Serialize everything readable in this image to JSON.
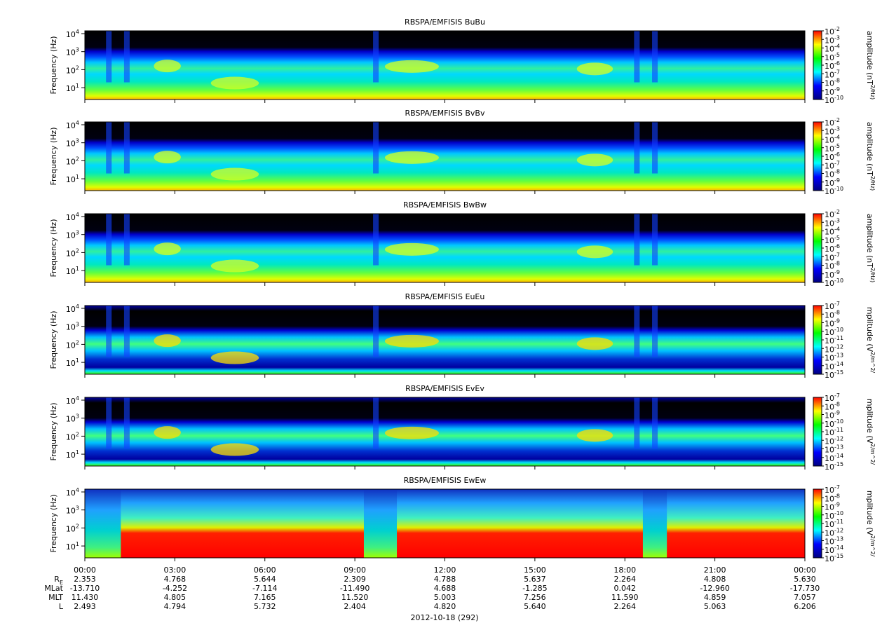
{
  "chart_data": [
    {
      "type": "spectrogram",
      "title": "RBSPA/EMFISIS  BuBu",
      "y_label": "Frequency (Hz)",
      "ylog": true,
      "ylim": [
        2.2,
        14300
      ],
      "yticks": [
        {
          "value": 10,
          "label": "10^1"
        },
        {
          "value": 100,
          "label": "10^2"
        },
        {
          "value": 1000,
          "label": "10^3"
        },
        {
          "value": 10000,
          "label": "10^4"
        }
      ],
      "xlim": [
        0,
        24
      ],
      "xticks": [
        0,
        3,
        6,
        9,
        12,
        15,
        18,
        21,
        24
      ],
      "colorbar_label": "amplitude (nT^2/Hz)",
      "clim": [
        1e-10,
        0.01
      ],
      "cticks": [
        {
          "value": 0.01,
          "label": "10^-2"
        },
        {
          "value": 0.001,
          "label": "10^-3"
        },
        {
          "value": 0.0001,
          "label": "10^-4"
        },
        {
          "value": 1e-05,
          "label": "10^-5"
        },
        {
          "value": 1e-06,
          "label": "10^-6"
        },
        {
          "value": 1e-07,
          "label": "10^-7"
        },
        {
          "value": 1e-08,
          "label": "10^-8"
        },
        {
          "value": 1e-09,
          "label": "10^-9"
        },
        {
          "value": 1e-10,
          "label": "10^-10"
        }
      ],
      "colormap": [
        "#00007f",
        "#0000ff",
        "#00ffff",
        "#00ff00",
        "#ffff00",
        "#ff0000"
      ]
    },
    {
      "type": "spectrogram",
      "title": "RBSPA/EMFISIS  BvBv",
      "y_label": "Frequency (Hz)",
      "ylog": true,
      "ylim": [
        2.2,
        14300
      ],
      "yticks": [
        {
          "value": 10,
          "label": "10^1"
        },
        {
          "value": 100,
          "label": "10^2"
        },
        {
          "value": 1000,
          "label": "10^3"
        },
        {
          "value": 10000,
          "label": "10^4"
        }
      ],
      "xlim": [
        0,
        24
      ],
      "xticks": [
        0,
        3,
        6,
        9,
        12,
        15,
        18,
        21,
        24
      ],
      "colorbar_label": "amplitude (nT^2/Hz)",
      "clim": [
        1e-10,
        0.01
      ],
      "cticks": [
        {
          "value": 0.01,
          "label": "10^-2"
        },
        {
          "value": 0.001,
          "label": "10^-3"
        },
        {
          "value": 0.0001,
          "label": "10^-4"
        },
        {
          "value": 1e-05,
          "label": "10^-5"
        },
        {
          "value": 1e-06,
          "label": "10^-6"
        },
        {
          "value": 1e-07,
          "label": "10^-7"
        },
        {
          "value": 1e-08,
          "label": "10^-8"
        },
        {
          "value": 1e-09,
          "label": "10^-9"
        },
        {
          "value": 1e-10,
          "label": "10^-10"
        }
      ],
      "colormap": [
        "#00007f",
        "#0000ff",
        "#00ffff",
        "#00ff00",
        "#ffff00",
        "#ff0000"
      ]
    },
    {
      "type": "spectrogram",
      "title": "RBSPA/EMFISIS  BwBw",
      "y_label": "Frequency (Hz)",
      "ylog": true,
      "ylim": [
        2.2,
        14300
      ],
      "yticks": [
        {
          "value": 10,
          "label": "10^1"
        },
        {
          "value": 100,
          "label": "10^2"
        },
        {
          "value": 1000,
          "label": "10^3"
        },
        {
          "value": 10000,
          "label": "10^4"
        }
      ],
      "xlim": [
        0,
        24
      ],
      "xticks": [
        0,
        3,
        6,
        9,
        12,
        15,
        18,
        21,
        24
      ],
      "colorbar_label": "amplitude (nT^2/Hz)",
      "clim": [
        1e-10,
        0.01
      ],
      "cticks": [
        {
          "value": 0.01,
          "label": "10^-2"
        },
        {
          "value": 0.001,
          "label": "10^-3"
        },
        {
          "value": 0.0001,
          "label": "10^-4"
        },
        {
          "value": 1e-05,
          "label": "10^-5"
        },
        {
          "value": 1e-06,
          "label": "10^-6"
        },
        {
          "value": 1e-07,
          "label": "10^-7"
        },
        {
          "value": 1e-08,
          "label": "10^-8"
        },
        {
          "value": 1e-09,
          "label": "10^-9"
        },
        {
          "value": 1e-10,
          "label": "10^-10"
        }
      ],
      "colormap": [
        "#00007f",
        "#0000ff",
        "#00ffff",
        "#00ff00",
        "#ffff00",
        "#ff0000"
      ]
    },
    {
      "type": "spectrogram",
      "title": "RBSPA/EMFISIS  EuEu",
      "y_label": "Frequency (Hz)",
      "ylog": true,
      "ylim": [
        2.2,
        14300
      ],
      "yticks": [
        {
          "value": 10,
          "label": "10^1"
        },
        {
          "value": 100,
          "label": "10^2"
        },
        {
          "value": 1000,
          "label": "10^3"
        },
        {
          "value": 10000,
          "label": "10^4"
        }
      ],
      "xlim": [
        0,
        24
      ],
      "xticks": [
        0,
        3,
        6,
        9,
        12,
        15,
        18,
        21,
        24
      ],
      "colorbar_label": "mplitude (V^2/m^2/",
      "clim": [
        1e-15,
        1e-07
      ],
      "cticks": [
        {
          "value": 1e-07,
          "label": "10^-7"
        },
        {
          "value": 1e-08,
          "label": "10^-8"
        },
        {
          "value": 1e-09,
          "label": "10^-9"
        },
        {
          "value": 1e-10,
          "label": "10^-10"
        },
        {
          "value": 1e-11,
          "label": "10^-11"
        },
        {
          "value": 1e-12,
          "label": "10^-12"
        },
        {
          "value": 1e-13,
          "label": "10^-13"
        },
        {
          "value": 1e-14,
          "label": "10^-14"
        },
        {
          "value": 1e-15,
          "label": "10^-15"
        }
      ],
      "colormap": [
        "#00007f",
        "#0000ff",
        "#00ffff",
        "#00ff00",
        "#ffff00",
        "#ff0000"
      ]
    },
    {
      "type": "spectrogram",
      "title": "RBSPA/EMFISIS  EvEv",
      "y_label": "Frequency (Hz)",
      "ylog": true,
      "ylim": [
        2.2,
        14300
      ],
      "yticks": [
        {
          "value": 10,
          "label": "10^1"
        },
        {
          "value": 100,
          "label": "10^2"
        },
        {
          "value": 1000,
          "label": "10^3"
        },
        {
          "value": 10000,
          "label": "10^4"
        }
      ],
      "xlim": [
        0,
        24
      ],
      "xticks": [
        0,
        3,
        6,
        9,
        12,
        15,
        18,
        21,
        24
      ],
      "colorbar_label": "mplitude (V^2/m^2/",
      "clim": [
        1e-15,
        1e-07
      ],
      "cticks": [
        {
          "value": 1e-07,
          "label": "10^-7"
        },
        {
          "value": 1e-08,
          "label": "10^-8"
        },
        {
          "value": 1e-09,
          "label": "10^-9"
        },
        {
          "value": 1e-10,
          "label": "10^-10"
        },
        {
          "value": 1e-11,
          "label": "10^-11"
        },
        {
          "value": 1e-12,
          "label": "10^-12"
        },
        {
          "value": 1e-13,
          "label": "10^-13"
        },
        {
          "value": 1e-14,
          "label": "10^-14"
        },
        {
          "value": 1e-15,
          "label": "10^-15"
        }
      ],
      "colormap": [
        "#00007f",
        "#0000ff",
        "#00ffff",
        "#00ff00",
        "#ffff00",
        "#ff0000"
      ]
    },
    {
      "type": "spectrogram",
      "title": "RBSPA/EMFISIS  EwEw",
      "y_label": "Frequency (Hz)",
      "ylog": true,
      "ylim": [
        2.2,
        14300
      ],
      "yticks": [
        {
          "value": 10,
          "label": "10^1"
        },
        {
          "value": 100,
          "label": "10^2"
        },
        {
          "value": 1000,
          "label": "10^3"
        },
        {
          "value": 10000,
          "label": "10^4"
        }
      ],
      "xlim": [
        0,
        24
      ],
      "xticks": [
        {
          "value": 0,
          "label": "00:00"
        },
        {
          "value": 3,
          "label": "03:00"
        },
        {
          "value": 6,
          "label": "06:00"
        },
        {
          "value": 9,
          "label": "09:00"
        },
        {
          "value": 12,
          "label": "12:00"
        },
        {
          "value": 15,
          "label": "15:00"
        },
        {
          "value": 18,
          "label": "18:00"
        },
        {
          "value": 21,
          "label": "21:00"
        },
        {
          "value": 24,
          "label": "00:00"
        }
      ],
      "colorbar_label": "mplitude (V^2/m^2/",
      "clim": [
        1e-15,
        1e-07
      ],
      "cticks": [
        {
          "value": 1e-07,
          "label": "10^-7"
        },
        {
          "value": 1e-08,
          "label": "10^-8"
        },
        {
          "value": 1e-09,
          "label": "10^-9"
        },
        {
          "value": 1e-10,
          "label": "10^-10"
        },
        {
          "value": 1e-11,
          "label": "10^-11"
        },
        {
          "value": 1e-12,
          "label": "10^-12"
        },
        {
          "value": 1e-13,
          "label": "10^-13"
        },
        {
          "value": 1e-14,
          "label": "10^-14"
        },
        {
          "value": 1e-15,
          "label": "10^-15"
        }
      ],
      "colormap": [
        "#00007f",
        "#0000ff",
        "#00ffff",
        "#00ff00",
        "#ffff00",
        "#ff0000"
      ]
    }
  ],
  "ephemeris": {
    "rows": [
      {
        "label": "R_E",
        "values": [
          "2.353",
          "4.768",
          "5.644",
          "2.309",
          "4.788",
          "5.637",
          "2.264",
          "4.808",
          "5.630"
        ]
      },
      {
        "label": "MLat",
        "values": [
          "-13.710",
          "-4.252",
          "-7.114",
          "-11.490",
          "4.688",
          "-1.285",
          "0.042",
          "-12.960",
          "-17.730"
        ]
      },
      {
        "label": "MLT",
        "values": [
          "11.430",
          "4.805",
          "7.165",
          "11.520",
          "5.003",
          "7.256",
          "11.590",
          "4.859",
          "7.057"
        ]
      },
      {
        "label": "L",
        "values": [
          "2.493",
          "4.794",
          "5.732",
          "2.404",
          "4.820",
          "5.640",
          "2.264",
          "5.063",
          "6.206"
        ]
      }
    ]
  },
  "date_label": "2012-10-18 (292)"
}
